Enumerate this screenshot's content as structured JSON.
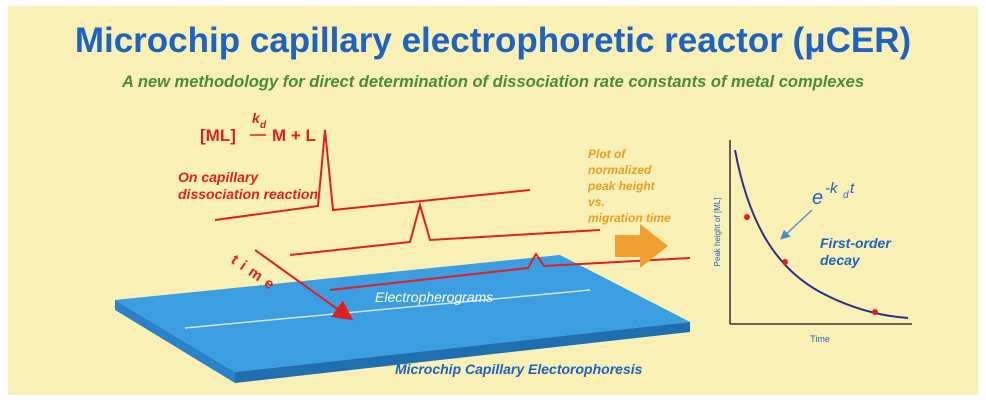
{
  "title": "Microchip capillary electrophoretic reactor (μCER)",
  "subtitle": "A new methodology for direct determination of dissociation rate constants of metal complexes",
  "reaction": {
    "reactant": "[ML]",
    "rate": "k",
    "rate_sub": "d",
    "products": "M + L"
  },
  "reaction_note": [
    "On capillary",
    "dissociation reaction"
  ],
  "time_label": "time",
  "electropherograms": "Electropherograms",
  "device": "Microchip Capillary Electorophoresis",
  "plot_note": [
    "Plot of",
    "normalized",
    "peak height",
    "vs.",
    "migration time"
  ],
  "graph": {
    "y_label": "Peak height of [ML]",
    "x_label": "Time",
    "formula": {
      "base": "e",
      "exp": "-k",
      "exp_sub": "d",
      "exp_t": "t"
    },
    "note": [
      "First-order",
      "decay"
    ]
  }
}
